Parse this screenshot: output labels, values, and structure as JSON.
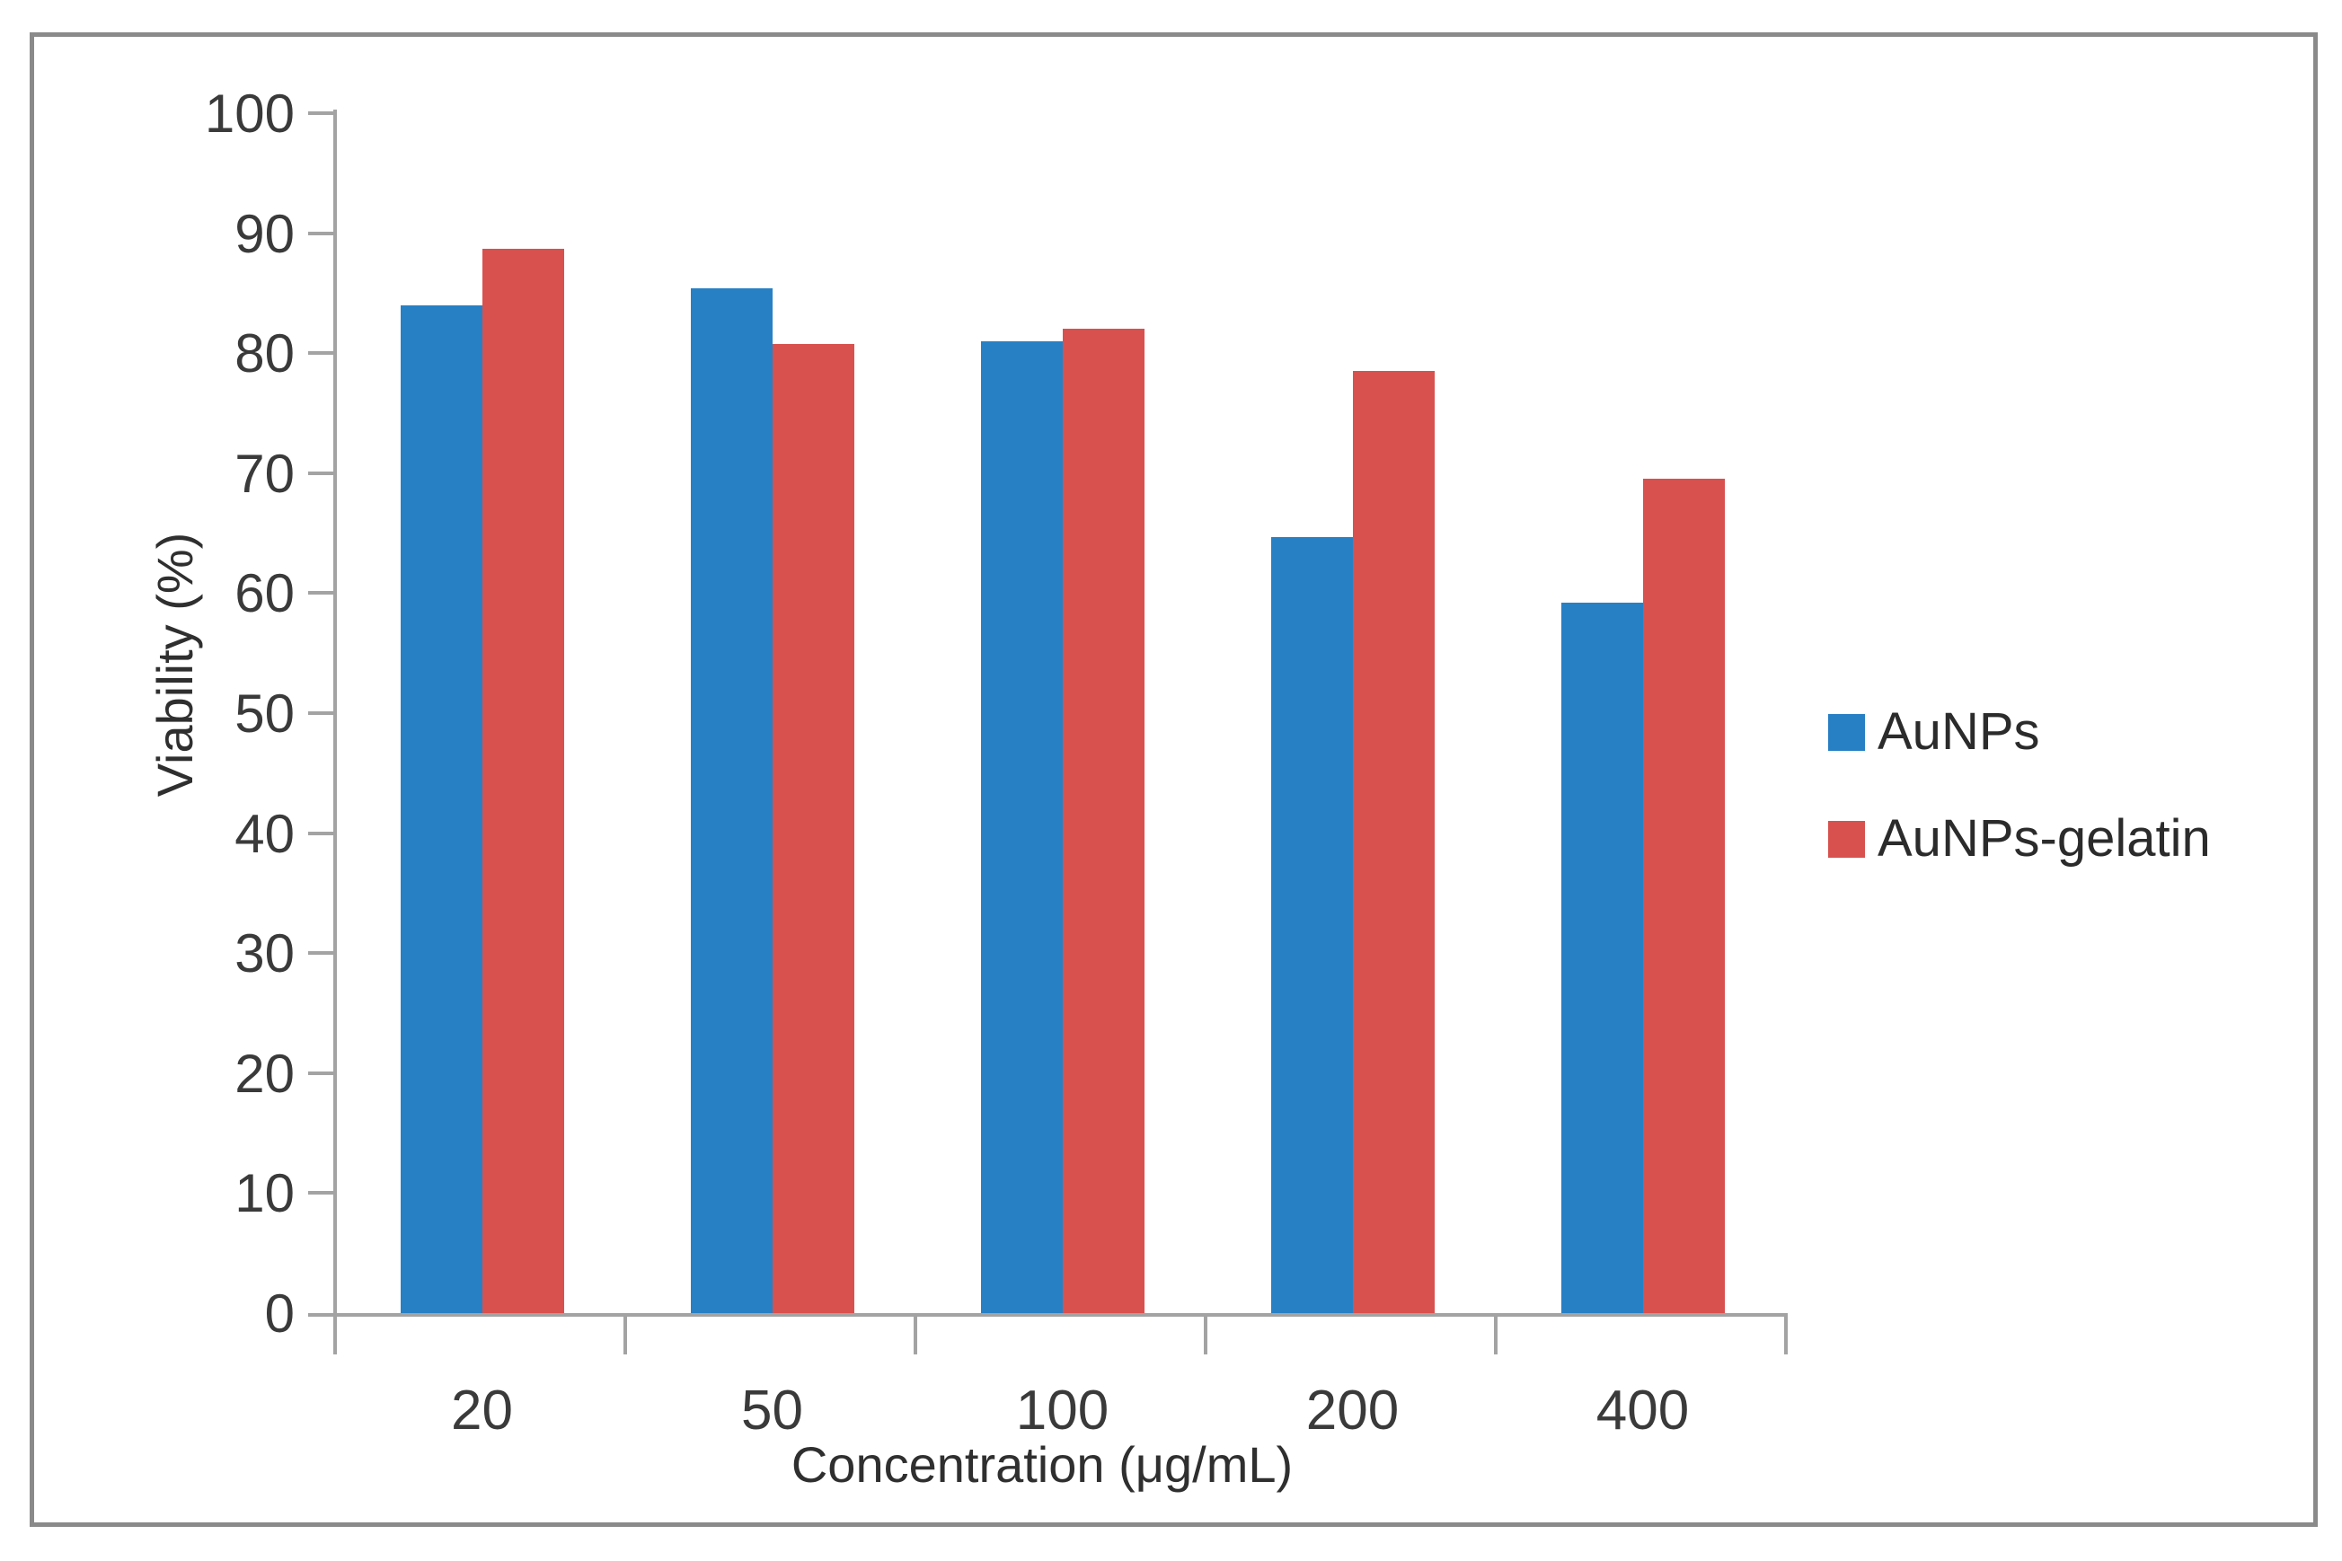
{
  "chart_data": {
    "type": "bar",
    "title": "",
    "xlabel": "Concentration (μg/mL)",
    "ylabel": "Viability (%)",
    "categories": [
      "20",
      "50",
      "100",
      "200",
      "400"
    ],
    "series": [
      {
        "name": "AuNPs",
        "color": "#2880c4",
        "values": [
          84,
          85.4,
          81,
          64.7,
          59.2
        ]
      },
      {
        "name": "AuNPs-gelatin",
        "color": "#d8514e",
        "values": [
          88.7,
          80.8,
          82,
          78.5,
          69.5
        ]
      }
    ],
    "ylim": [
      0,
      100
    ],
    "ytick_step": 10,
    "ytick_labels": [
      "0",
      "10",
      "20",
      "30",
      "40",
      "50",
      "60",
      "70",
      "80",
      "90",
      "100"
    ],
    "grid": false,
    "legend_position": "right",
    "axis_color": "#a3a3a3",
    "text_color": "#3a3a3a",
    "frame_border_color": "#8a8a8a",
    "background_color": "#ffffff"
  }
}
